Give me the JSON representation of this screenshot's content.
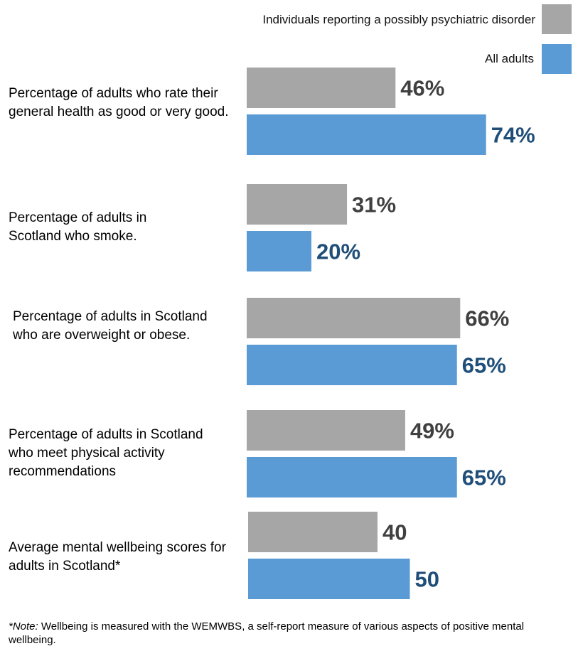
{
  "colors": {
    "disorder": "#a6a6a6",
    "all": "#5b9bd5",
    "disorder_label": "#404040",
    "all_label": "#1f4e79"
  },
  "legend": [
    {
      "name": "Individuals reporting a possibly psychiatric disorder",
      "color": "#a6a6a6"
    },
    {
      "name": "All adults",
      "color": "#5b9bd5"
    }
  ],
  "chart_data": {
    "type": "bar",
    "orientation": "horizontal",
    "categories": [
      "Percentage of adults who rate their general health as good or very good.",
      "Percentage of adults in Scotland who smoke.",
      "Percentage of adults in Scotland who are overweight or obese.",
      "Percentage of adults in Scotland who meet physical activity recommendations",
      "Average mental wellbeing scores for adults in Scotland*"
    ],
    "series": [
      {
        "name": "Individuals reporting a possibly psychiatric disorder",
        "values": [
          46,
          31,
          66,
          49,
          40
        ],
        "labels": [
          "46%",
          "31%",
          "66%",
          "49%",
          "40"
        ]
      },
      {
        "name": "All adults",
        "values": [
          74,
          20,
          65,
          65,
          50
        ],
        "labels": [
          "74%",
          "20%",
          "65%",
          "65%",
          "50"
        ]
      }
    ],
    "legend_position": "top-right",
    "grid": false
  },
  "note": {
    "prefix": "*Note:",
    "text": " Wellbeing is measured with the WEMWBS, a self-report measure of various aspects of positive mental wellbeing."
  }
}
